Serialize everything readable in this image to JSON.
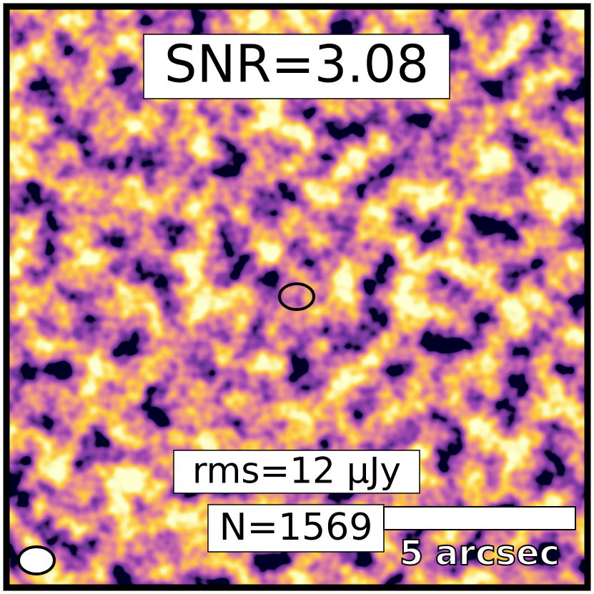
{
  "labels": {
    "snr": "SNR=3.08",
    "rms": "rms=12 μJy",
    "count": "N=1569",
    "scale_bar": "5 arcsec"
  }
}
